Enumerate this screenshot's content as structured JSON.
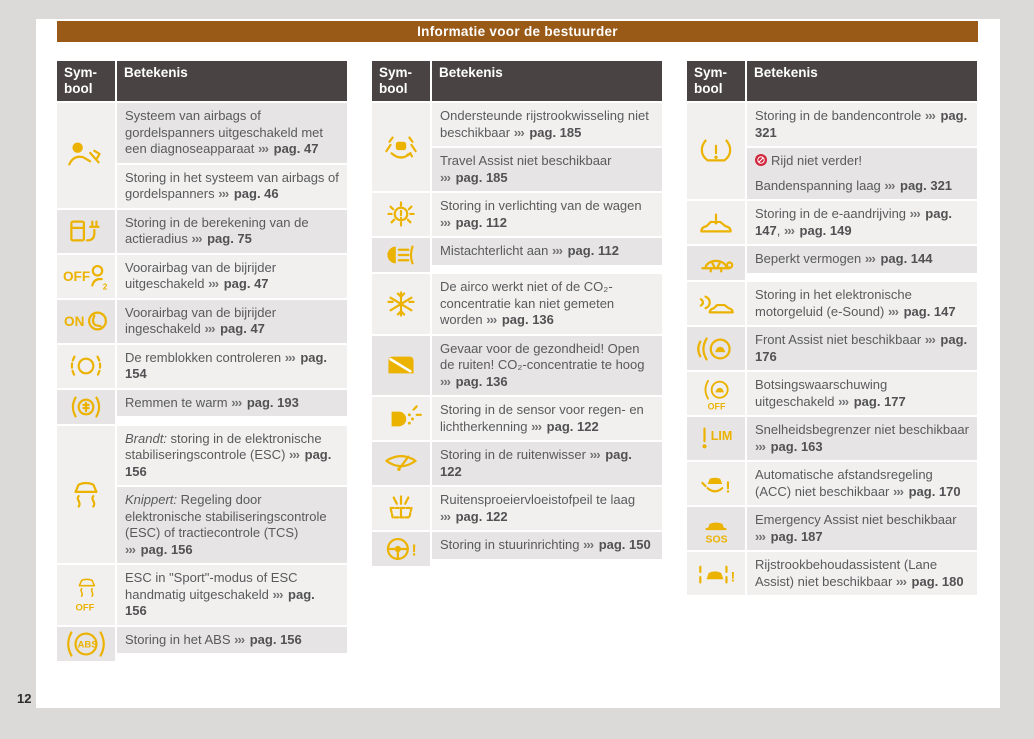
{
  "header": {
    "title": "Informatie voor de bestuurder"
  },
  "page_number": "12",
  "glyphs": {
    "cross_ref_marker": "›››"
  },
  "colors": {
    "accent_yellow": "#ECB200",
    "title_brown": "#9A5A17",
    "table_header_dark": "#494443",
    "stop_red": "#D2243A",
    "row_shade_dark": "#E6E4E4",
    "row_shade_light": "#F1F0EF"
  },
  "col_headers": {
    "symbol": "Sym-bool",
    "meaning": "Betekenis"
  },
  "tables": [
    {
      "groups": [
        {
          "icon": "airbag-diagnosis-icon",
          "rows": [
            {
              "lines": [
                [
                  {
                    "t": "Systeem van airbags of gordelspanners uitgeschakeld met een diagnoseapparaat "
                  },
                  {
                    "ref": "pag. 47"
                  }
                ]
              ]
            },
            {
              "lines": [
                [
                  {
                    "t": "Storing in het systeem van airbags of gordelspanners "
                  },
                  {
                    "ref": "pag. 46"
                  }
                ]
              ]
            }
          ]
        },
        {
          "icon": "range-calculation-fault-icon",
          "rows": [
            {
              "lines": [
                [
                  {
                    "t": "Storing in de berekening van de actieradius "
                  },
                  {
                    "ref": "pag. 75"
                  }
                ]
              ]
            }
          ]
        },
        {
          "icon": "passenger-airbag-off-icon",
          "rows": [
            {
              "lines": [
                [
                  {
                    "t": "Voorairbag van de bijrijder uitgeschakeld "
                  },
                  {
                    "ref": "pag. 47"
                  }
                ]
              ]
            }
          ]
        },
        {
          "icon": "passenger-airbag-on-icon",
          "rows": [
            {
              "lines": [
                [
                  {
                    "t": "Voorairbag van de bijrijder ingeschakeld "
                  },
                  {
                    "ref": "pag. 47"
                  }
                ]
              ]
            }
          ]
        },
        {
          "icon": "brake-pads-icon",
          "rows": [
            {
              "lines": [
                [
                  {
                    "t": "De remblokken controleren "
                  },
                  {
                    "ref": "pag. 154"
                  }
                ]
              ]
            }
          ]
        },
        {
          "icon": "brakes-overheated-icon",
          "rows": [
            {
              "lines": [
                [
                  {
                    "t": "Remmen te warm "
                  },
                  {
                    "ref": "pag. 193"
                  }
                ]
              ]
            }
          ]
        },
        {
          "icon": "esc-icon",
          "rows": [
            {
              "lines": [
                [
                  {
                    "i": "Brandt:"
                  },
                  {
                    "t": " storing in de elektronische stabiliseringscontrole (ESC) "
                  },
                  {
                    "ref": "pag. 156"
                  }
                ]
              ]
            },
            {
              "lines": [
                [
                  {
                    "i": "Knippert:"
                  },
                  {
                    "t": " Regeling door elektronische stabiliseringscontrole (ESC) of tractiecontrole (TCS) "
                  },
                  {
                    "ref": "pag. 156"
                  }
                ]
              ]
            }
          ]
        },
        {
          "icon": "esc-off-icon",
          "rows": [
            {
              "lines": [
                [
                  {
                    "t": "ESC in \"Sport\"-modus of ESC handmatig uitgeschakeld "
                  },
                  {
                    "ref": "pag. 156"
                  }
                ]
              ]
            }
          ]
        },
        {
          "icon": "abs-fault-icon",
          "rows": [
            {
              "lines": [
                [
                  {
                    "t": "Storing in het ABS "
                  },
                  {
                    "ref": "pag. 156"
                  }
                ]
              ]
            }
          ]
        }
      ]
    },
    {
      "groups": [
        {
          "icon": "assisted-lane-change-icon",
          "rows": [
            {
              "lines": [
                [
                  {
                    "t": "Ondersteunde rijstrookwisseling niet beschikbaar "
                  },
                  {
                    "ref": "pag. 185"
                  }
                ]
              ]
            },
            {
              "lines": [
                [
                  {
                    "t": "Travel Assist niet beschikbaar "
                  },
                  {
                    "ref": "pag. 185"
                  }
                ]
              ]
            }
          ]
        },
        {
          "icon": "lighting-fault-icon",
          "rows": [
            {
              "lines": [
                [
                  {
                    "t": "Storing in verlichting van de wagen "
                  },
                  {
                    "ref": "pag. 112"
                  }
                ]
              ]
            }
          ]
        },
        {
          "icon": "rear-fog-light-icon",
          "rows": [
            {
              "lines": [
                [
                  {
                    "t": "Mistachterlicht aan "
                  },
                  {
                    "ref": "pag. 112"
                  }
                ]
              ]
            }
          ]
        },
        {
          "icon": "aircon-snowflake-icon",
          "rows": [
            {
              "lines": [
                [
                  {
                    "t": "De airco werkt niet of de CO₂-concentratie kan niet gemeten worden "
                  },
                  {
                    "ref": "pag. 136"
                  }
                ]
              ]
            }
          ]
        },
        {
          "icon": "co2-open-windows-icon",
          "rows": [
            {
              "lines": [
                [
                  {
                    "t": "Gevaar voor de gezondheid! Open de ruiten! CO₂-concentratie te hoog "
                  },
                  {
                    "ref": "pag. 136"
                  }
                ]
              ]
            }
          ]
        },
        {
          "icon": "rain-light-sensor-icon",
          "rows": [
            {
              "lines": [
                [
                  {
                    "t": "Storing in de sensor voor regen- en lichtherkenning "
                  },
                  {
                    "ref": "pag. 122"
                  }
                ]
              ]
            }
          ]
        },
        {
          "icon": "wiper-fault-icon",
          "rows": [
            {
              "lines": [
                [
                  {
                    "t": "Storing in de ruitenwisser "
                  },
                  {
                    "ref": "pag. 122"
                  }
                ]
              ]
            }
          ]
        },
        {
          "icon": "washer-fluid-low-icon",
          "rows": [
            {
              "lines": [
                [
                  {
                    "t": "Ruitensproeiervloeistofpeil te laag "
                  },
                  {
                    "ref": "pag. 122"
                  }
                ]
              ]
            }
          ]
        },
        {
          "icon": "steering-fault-icon",
          "rows": [
            {
              "lines": [
                [
                  {
                    "t": "Storing in stuurinrichting "
                  },
                  {
                    "ref": "pag. 150"
                  }
                ]
              ]
            }
          ]
        }
      ]
    },
    {
      "groups": [
        {
          "icon": "tyre-pressure-icon",
          "rows": [
            {
              "lines": [
                [
                  {
                    "t": "Storing in de bandencontrole "
                  },
                  {
                    "ref": "pag. 321"
                  }
                ]
              ]
            },
            {
              "lines": [
                [
                  {
                    "stop": true
                  },
                  {
                    "t": "Rijd niet verder!"
                  }
                ],
                [
                  {
                    "t": "Bandenspanning laag "
                  },
                  {
                    "ref": "pag. 321"
                  }
                ]
              ]
            }
          ]
        },
        {
          "icon": "e-drive-fault-icon",
          "rows": [
            {
              "lines": [
                [
                  {
                    "t": "Storing in de e-aandrijving "
                  },
                  {
                    "ref": "pag. 147"
                  },
                  {
                    "t": ", "
                  },
                  {
                    "ref": "pag. 149"
                  }
                ]
              ]
            }
          ]
        },
        {
          "icon": "reduced-power-turtle-icon",
          "rows": [
            {
              "lines": [
                [
                  {
                    "t": "Beperkt vermogen "
                  },
                  {
                    "ref": "pag. 144"
                  }
                ]
              ]
            }
          ]
        },
        {
          "icon": "e-sound-fault-icon",
          "rows": [
            {
              "lines": [
                [
                  {
                    "t": "Storing in het elektronische motorgeluid (e-Sound) "
                  },
                  {
                    "ref": "pag. 147"
                  }
                ]
              ]
            }
          ]
        },
        {
          "icon": "front-assist-icon",
          "rows": [
            {
              "lines": [
                [
                  {
                    "t": "Front Assist niet beschikbaar "
                  },
                  {
                    "ref": "pag. 176"
                  }
                ]
              ]
            }
          ]
        },
        {
          "icon": "collision-warning-off-icon",
          "rows": [
            {
              "lines": [
                [
                  {
                    "t": "Botsingswaarschuwing uitgeschakeld "
                  },
                  {
                    "ref": "pag. 177"
                  }
                ]
              ]
            }
          ]
        },
        {
          "icon": "speed-limiter-icon",
          "rows": [
            {
              "lines": [
                [
                  {
                    "t": "Snelheidsbegrenzer niet beschikbaar "
                  },
                  {
                    "ref": "pag. 163"
                  }
                ]
              ]
            }
          ]
        },
        {
          "icon": "acc-fault-icon",
          "rows": [
            {
              "lines": [
                [
                  {
                    "t": "Automatische afstandsregeling (ACC) niet beschikbaar "
                  },
                  {
                    "ref": "pag. 170"
                  }
                ]
              ]
            }
          ]
        },
        {
          "icon": "emergency-assist-icon",
          "rows": [
            {
              "lines": [
                [
                  {
                    "t": "Emergency Assist niet beschikbaar "
                  },
                  {
                    "ref": "pag. 187"
                  }
                ]
              ]
            }
          ]
        },
        {
          "icon": "lane-assist-icon",
          "rows": [
            {
              "lines": [
                [
                  {
                    "t": "Rijstrookbehoudassistent (Lane Assist) niet beschikbaar "
                  },
                  {
                    "ref": "pag. 180"
                  }
                ]
              ]
            }
          ]
        }
      ]
    }
  ]
}
